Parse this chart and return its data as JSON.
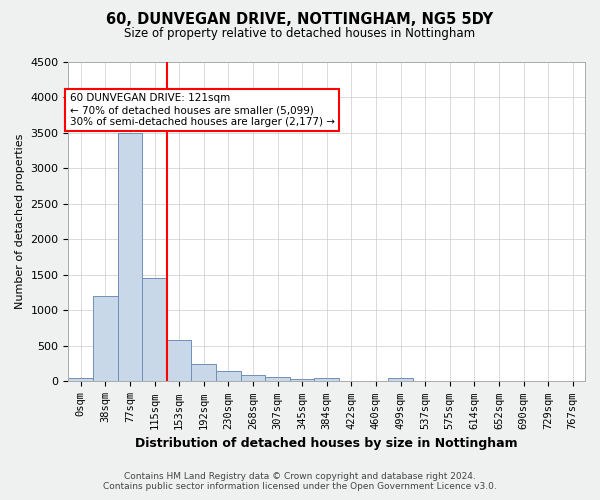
{
  "title": "60, DUNVEGAN DRIVE, NOTTINGHAM, NG5 5DY",
  "subtitle": "Size of property relative to detached houses in Nottingham",
  "xlabel": "Distribution of detached houses by size in Nottingham",
  "ylabel": "Number of detached properties",
  "footer_line1": "Contains HM Land Registry data © Crown copyright and database right 2024.",
  "footer_line2": "Contains public sector information licensed under the Open Government Licence v3.0.",
  "bin_labels": [
    "0sqm",
    "38sqm",
    "77sqm",
    "115sqm",
    "153sqm",
    "192sqm",
    "230sqm",
    "268sqm",
    "307sqm",
    "345sqm",
    "384sqm",
    "422sqm",
    "460sqm",
    "499sqm",
    "537sqm",
    "575sqm",
    "614sqm",
    "652sqm",
    "690sqm",
    "729sqm",
    "767sqm"
  ],
  "bar_heights": [
    50,
    1200,
    3500,
    1450,
    580,
    250,
    150,
    90,
    60,
    40,
    50,
    0,
    0,
    50,
    0,
    0,
    0,
    0,
    0,
    0,
    0
  ],
  "bar_color": "#c8d8e8",
  "bar_edge_color": "#7090b8",
  "ylim": [
    0,
    4500
  ],
  "yticks": [
    0,
    500,
    1000,
    1500,
    2000,
    2500,
    3000,
    3500,
    4000,
    4500
  ],
  "red_line_x": 3.5,
  "annotation_line1": "60 DUNVEGAN DRIVE: 121sqm",
  "annotation_line2": "← 70% of detached houses are smaller (5,099)",
  "annotation_line3": "30% of semi-detached houses are larger (2,177) →",
  "background_color": "#eff0f0",
  "plot_background_color": "#ffffff",
  "grid_color": "#cccccc"
}
